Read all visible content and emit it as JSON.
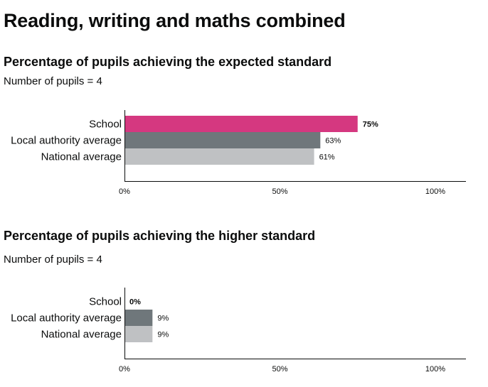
{
  "page": {
    "title": "Reading, writing and maths combined"
  },
  "colors": {
    "school": "#d53880",
    "local_authority": "#6f777b",
    "national": "#bfc1c3",
    "axis": "#0b0c0c"
  },
  "chart_data": [
    {
      "type": "bar",
      "orientation": "horizontal",
      "title": "Percentage of pupils achieving the expected standard",
      "subtitle": "Number of pupils = 4",
      "categories": [
        "School",
        "Local authority average",
        "National average"
      ],
      "values": [
        75,
        63,
        61
      ],
      "value_labels": [
        "75%",
        "63%",
        "61%"
      ],
      "xlim": [
        0,
        100
      ],
      "xticks": [
        0,
        50,
        100
      ],
      "xtick_labels": [
        "0%",
        "50%",
        "100%"
      ],
      "grid": false
    },
    {
      "type": "bar",
      "orientation": "horizontal",
      "title": "Percentage of pupils achieving the higher standard",
      "subtitle": "Number of pupils = 4",
      "categories": [
        "School",
        "Local authority average",
        "National average"
      ],
      "values": [
        0,
        9,
        9
      ],
      "value_labels": [
        "0%",
        "9%",
        "9%"
      ],
      "xlim": [
        0,
        100
      ],
      "xticks": [
        0,
        50,
        100
      ],
      "xtick_labels": [
        "0%",
        "50%",
        "100%"
      ],
      "grid": false
    }
  ]
}
